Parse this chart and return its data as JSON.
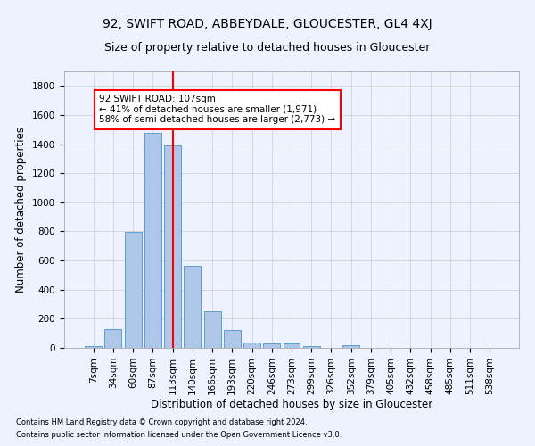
{
  "title": "92, SWIFT ROAD, ABBEYDALE, GLOUCESTER, GL4 4XJ",
  "subtitle": "Size of property relative to detached houses in Gloucester",
  "xlabel": "Distribution of detached houses by size in Gloucester",
  "ylabel": "Number of detached properties",
  "footnote1": "Contains HM Land Registry data © Crown copyright and database right 2024.",
  "footnote2": "Contains public sector information licensed under the Open Government Licence v3.0.",
  "categories": [
    "7sqm",
    "34sqm",
    "60sqm",
    "87sqm",
    "113sqm",
    "140sqm",
    "166sqm",
    "193sqm",
    "220sqm",
    "246sqm",
    "273sqm",
    "299sqm",
    "326sqm",
    "352sqm",
    "379sqm",
    "405sqm",
    "432sqm",
    "458sqm",
    "485sqm",
    "511sqm",
    "538sqm"
  ],
  "values": [
    15,
    130,
    795,
    1480,
    1390,
    565,
    250,
    120,
    35,
    30,
    30,
    15,
    0,
    20,
    0,
    0,
    0,
    0,
    0,
    0,
    0
  ],
  "bar_color": "#aec6e8",
  "bar_edge_color": "#5a9fd4",
  "vline_x": 4,
  "vline_color": "red",
  "annotation_text": "92 SWIFT ROAD: 107sqm\n← 41% of detached houses are smaller (1,971)\n58% of semi-detached houses are larger (2,773) →",
  "annotation_box_color": "white",
  "annotation_box_edge_color": "red",
  "ylim": [
    0,
    1900
  ],
  "yticks": [
    0,
    200,
    400,
    600,
    800,
    1000,
    1200,
    1400,
    1600,
    1800
  ],
  "bg_color": "#eef2ff",
  "grid_color": "#cccccc",
  "title_fontsize": 10,
  "subtitle_fontsize": 9,
  "axis_label_fontsize": 8.5,
  "tick_fontsize": 7.5,
  "footnote_fontsize": 6
}
